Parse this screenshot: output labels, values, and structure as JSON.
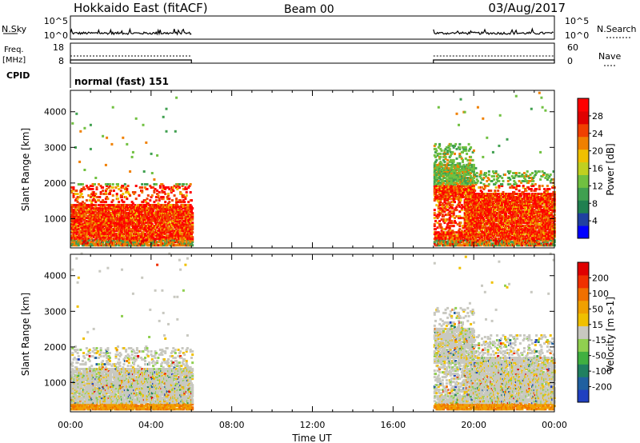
{
  "header": {
    "title": "Hokkaido East (fitACF)",
    "beam": "Beam 00",
    "date": "03/Aug/2017"
  },
  "strips": {
    "nsky_label": "N.Sky",
    "nsky_ticks": [
      "10^5",
      "10^0"
    ],
    "nsearch_label": "N.Search",
    "nsearch_ticks": [
      "10^5",
      "10^0"
    ],
    "freq_label": "Freq.",
    "freq_unit": "[MHz]",
    "freq_ticks": [
      "18",
      "8"
    ],
    "nave_label": "Nave",
    "nave_ticks": [
      "60",
      "0"
    ],
    "cpid_label": "CPID",
    "cpid_value": "normal (fast) 151"
  },
  "chart_data": [
    {
      "type": "heatmap",
      "name": "power",
      "ylabel": "Slant Range [km]",
      "yticks": [
        "4000",
        "3000",
        "2000",
        "1000"
      ],
      "ylim": [
        180,
        4600
      ],
      "xlim": [
        0,
        24
      ],
      "data_windows_hours": [
        [
          0,
          6
        ],
        [
          18,
          24
        ]
      ],
      "colorbar": {
        "label": "Power [dB]",
        "ticks": [
          "28",
          "24",
          "20",
          "16",
          "12",
          "8",
          "4"
        ],
        "colors": [
          "#0000ff",
          "#2040a0",
          "#208050",
          "#40a050",
          "#70c040",
          "#c0d020",
          "#f0c000",
          "#f08000",
          "#f04000",
          "#e00000",
          "#ff0000"
        ]
      }
    },
    {
      "type": "heatmap",
      "name": "velocity",
      "ylabel": "Slant Range [km]",
      "yticks": [
        "4000",
        "3000",
        "2000",
        "1000"
      ],
      "ylim": [
        180,
        4600
      ],
      "xlim": [
        0,
        24
      ],
      "data_windows_hours": [
        [
          0,
          6
        ],
        [
          18,
          24
        ]
      ],
      "colorbar": {
        "label": "Velocity [m s-1]",
        "ticks": [
          "200",
          "100",
          "50",
          "15",
          "-15",
          "-50",
          "-100",
          "-200"
        ],
        "colors": [
          "#2040c0",
          "#2060a0",
          "#208060",
          "#40b040",
          "#90d050",
          "#c8c8c0",
          "#f0c000",
          "#f0a000",
          "#f07000",
          "#f03000",
          "#e00000"
        ]
      }
    }
  ],
  "xaxis": {
    "ticks": [
      "00:00",
      "04:00",
      "08:00",
      "12:00",
      "16:00",
      "20:00",
      "00:00"
    ],
    "label": "Time UT"
  }
}
